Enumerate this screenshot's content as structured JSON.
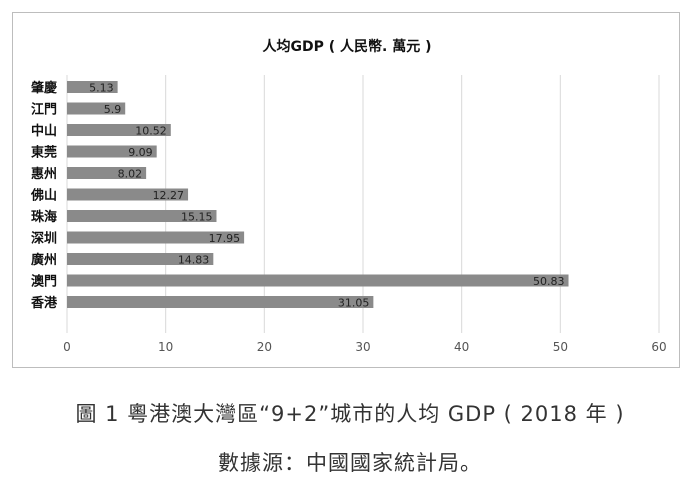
{
  "chart_data": {
    "type": "bar",
    "orientation": "horizontal",
    "title": "人均GDP ( 人民幣. 萬元 )",
    "categories": [
      "肇慶",
      "江門",
      "中山",
      "東莞",
      "惠州",
      "佛山",
      "珠海",
      "深圳",
      "廣州",
      "澳門",
      "香港"
    ],
    "values": [
      5.13,
      5.9,
      10.52,
      9.09,
      8.02,
      12.27,
      15.15,
      17.95,
      14.83,
      50.83,
      31.05
    ],
    "value_labels": [
      "5.13",
      "5.9",
      "10.52",
      "9.09",
      "8.02",
      "12.27",
      "15.15",
      "17.95",
      "14.83",
      "50.83",
      "31.05"
    ],
    "xlim": [
      0,
      60
    ],
    "xticks": [
      "0",
      "10",
      "20",
      "30",
      "40",
      "50",
      "60"
    ],
    "grid": "vertical",
    "bar_color": "#8a8a8a",
    "grid_color": "#d9d9d9"
  },
  "caption": {
    "main": "圖 1 粵港澳大灣區“9+2”城市的人均 GDP ( 2018 年 )",
    "source": "數據源：中國國家統計局。"
  }
}
